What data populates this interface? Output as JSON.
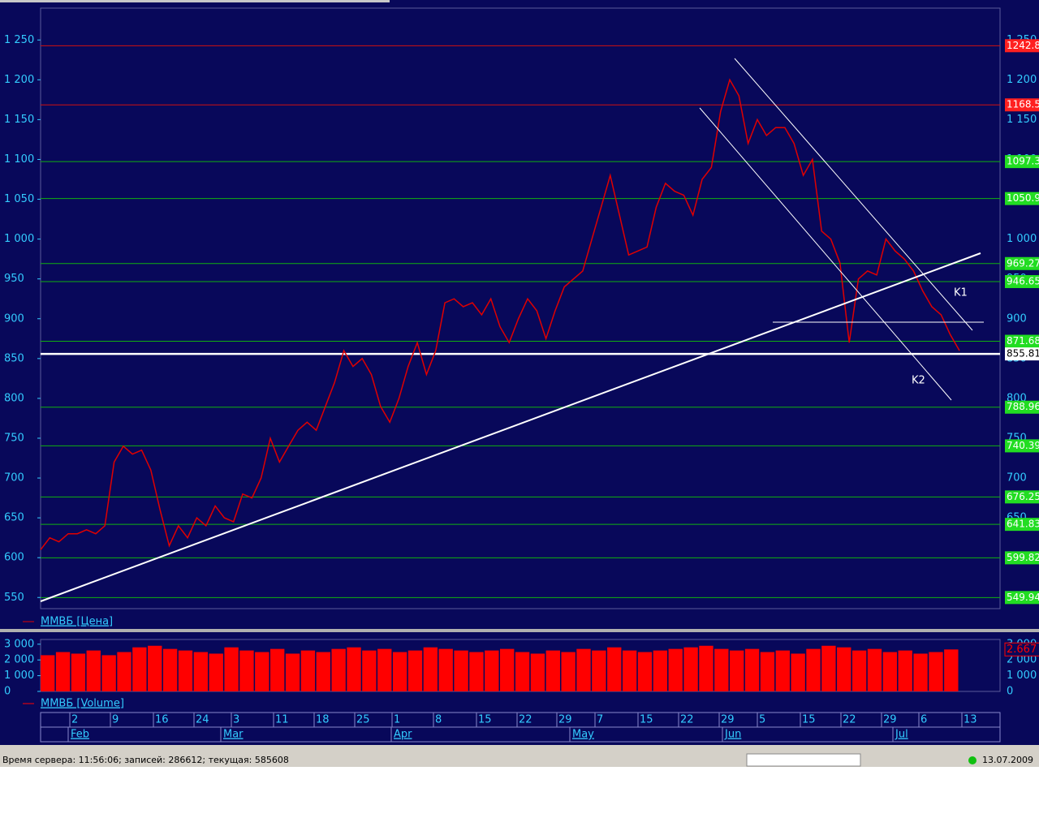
{
  "chart_data": [
    {
      "type": "line",
      "series": [
        {
          "name": "ММВБ [Цена]",
          "color": "#e00000",
          "values": [
            610,
            625,
            620,
            630,
            630,
            635,
            630,
            640,
            720,
            740,
            730,
            735,
            710,
            660,
            615,
            640,
            625,
            650,
            640,
            665,
            650,
            645,
            680,
            675,
            700,
            750,
            720,
            740,
            760,
            770,
            760,
            790,
            820,
            860,
            840,
            850,
            830,
            790,
            770,
            800,
            840,
            870,
            830,
            860,
            920,
            925,
            915,
            920,
            905,
            925,
            890,
            870,
            900,
            925,
            910,
            875,
            910,
            940,
            950,
            960,
            1000,
            1040,
            1080,
            1030,
            980,
            985,
            990,
            1040,
            1070,
            1060,
            1055,
            1030,
            1075,
            1090,
            1160,
            1200,
            1180,
            1120,
            1150,
            1130,
            1140,
            1140,
            1120,
            1080,
            1100,
            1010,
            1000,
            970,
            870,
            950,
            960,
            955,
            1000,
            985,
            975,
            960,
            935,
            915,
            905,
            880,
            860
          ]
        }
      ],
      "ylim": [
        536,
        1290
      ],
      "yticks": [
        550,
        600,
        650,
        700,
        750,
        800,
        850,
        900,
        950,
        {
          "value": 1000,
          "label": "1 000"
        },
        {
          "value": 1050,
          "label": "1 050"
        },
        {
          "value": 1100,
          "label": "1 100"
        },
        {
          "value": 1150,
          "label": "1 150"
        },
        {
          "value": 1200,
          "label": "1 200"
        },
        {
          "value": 1250,
          "label": "1 250"
        }
      ],
      "levels": [
        {
          "value": 1242.8,
          "color": "#d01010"
        },
        {
          "value": 1168.5,
          "color": "#d01010"
        },
        {
          "value": 1097.3,
          "color": "#10b010"
        },
        {
          "value": 1050.9,
          "color": "#10b010"
        },
        {
          "value": 969.27,
          "color": "#10b010"
        },
        {
          "value": 946.65,
          "color": "#10b010"
        },
        {
          "value": 871.68,
          "color": "#10b010"
        },
        {
          "value": 855.81,
          "color": "#ffffff"
        },
        {
          "value": 788.96,
          "color": "#10b010"
        },
        {
          "value": 740.39,
          "color": "#10b010"
        },
        {
          "value": 676.25,
          "color": "#10b010"
        },
        {
          "value": 641.83,
          "color": "#10b010"
        },
        {
          "value": 599.82,
          "color": "#10b010"
        },
        {
          "value": 549.94,
          "color": "#10b010"
        }
      ]
    },
    {
      "type": "bar",
      "series": [
        {
          "name": "ММВБ [Volume]",
          "color": "#ff0000",
          "values": [
            2300,
            2500,
            2400,
            2600,
            2300,
            2500,
            2800,
            2900,
            2700,
            2600,
            2500,
            2400,
            2800,
            2600,
            2500,
            2700,
            2400,
            2600,
            2500,
            2700,
            2800,
            2600,
            2700,
            2500,
            2600,
            2800,
            2700,
            2600,
            2500,
            2600,
            2700,
            2500,
            2400,
            2600,
            2500,
            2700,
            2600,
            2800,
            2600,
            2500,
            2600,
            2700,
            2800,
            2900,
            2700,
            2600,
            2700,
            2500,
            2600,
            2400,
            2700,
            2900,
            2800,
            2600,
            2700,
            2500,
            2600,
            2400,
            2500,
            2667
          ],
          "value_labels": [
            null,
            null,
            null,
            null,
            null,
            null,
            null,
            null,
            null,
            null,
            null,
            null,
            null,
            null,
            null,
            null,
            null,
            null,
            null,
            null,
            null,
            null,
            null,
            null,
            null,
            null,
            null,
            null,
            null,
            null,
            null,
            null,
            null,
            null,
            null,
            null,
            null,
            null,
            null,
            null,
            null,
            null,
            null,
            null,
            null,
            null,
            null,
            null,
            null,
            null,
            null,
            null,
            null,
            null,
            null,
            null,
            null,
            null,
            null,
            "2.667"
          ]
        }
      ],
      "ylim": [
        0,
        3300
      ],
      "yticks": [
        0,
        {
          "value": 1000,
          "label": "1 000"
        },
        {
          "value": 2000,
          "label": "2 000"
        },
        {
          "value": 3000,
          "label": "3 000"
        }
      ]
    }
  ],
  "x_axis": {
    "days": [
      "2",
      "9",
      "16",
      "24",
      "3",
      "11",
      "18",
      "25",
      "1",
      "8",
      "15",
      "22",
      "29",
      "7",
      "15",
      "22",
      "29",
      "5",
      "15",
      "22",
      "29",
      "6",
      "13"
    ],
    "months": [
      "Feb",
      "Mar",
      "Apr",
      "May",
      "Jun",
      "Jul"
    ]
  },
  "annotations": [
    "K1",
    "K2"
  ],
  "status": {
    "server": "Время сервера: 11:56:06; записей: 286612; текущая: 585608",
    "date": "13.07.2009"
  }
}
